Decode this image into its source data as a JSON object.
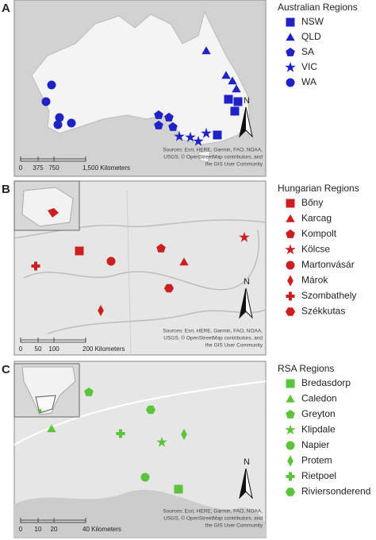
{
  "panels": [
    {
      "letter": "A",
      "legend_title": "Australian Regions",
      "color": "#1f22c4",
      "items": [
        {
          "name": "NSW",
          "marker": "square"
        },
        {
          "name": "QLD",
          "marker": "triangle"
        },
        {
          "name": "SA",
          "marker": "pentagon"
        },
        {
          "name": "VIC",
          "marker": "star"
        },
        {
          "name": "WA",
          "marker": "circle"
        }
      ],
      "scale_labels": [
        "0",
        "375",
        "750",
        "1,500 Kilometers"
      ],
      "north": "N",
      "attribution": [
        "Sources: Esri, HERE, Garmin, FAO, NOAA,",
        "USGS, © OpenStreetMap contributors, and",
        "the GIS User Community"
      ]
    },
    {
      "letter": "B",
      "legend_title": "Hungarian Regions",
      "color": "#cc1f1f",
      "items": [
        {
          "name": "Bőny",
          "marker": "square"
        },
        {
          "name": "Karcag",
          "marker": "triangle"
        },
        {
          "name": "Kompolt",
          "marker": "pentagon"
        },
        {
          "name": "Kölcse",
          "marker": "star"
        },
        {
          "name": "Martonvásár",
          "marker": "circle"
        },
        {
          "name": "Márok",
          "marker": "diamond"
        },
        {
          "name": "Szombathely",
          "marker": "cross"
        },
        {
          "name": "Székkutas",
          "marker": "hexagon"
        }
      ],
      "scale_labels": [
        "0",
        "50",
        "100",
        "200 Kilometers"
      ],
      "north": "N",
      "attribution": [
        "Sources: Esri, HERE, Garmin, FAO, NOAA,",
        "USGS, © OpenStreetMap contributors, and",
        "the GIS User Community"
      ]
    },
    {
      "letter": "C",
      "legend_title": "RSA Regions",
      "color": "#5cc43a",
      "items": [
        {
          "name": "Bredasdorp",
          "marker": "square"
        },
        {
          "name": "Caledon",
          "marker": "triangle"
        },
        {
          "name": "Greyton",
          "marker": "pentagon"
        },
        {
          "name": "Klipdale",
          "marker": "star"
        },
        {
          "name": "Napier",
          "marker": "circle"
        },
        {
          "name": "Protem",
          "marker": "diamond"
        },
        {
          "name": "Rietpoel",
          "marker": "cross"
        },
        {
          "name": "Riviersonderend",
          "marker": "hexagon"
        }
      ],
      "scale_labels": [
        "0",
        "10",
        "20",
        "40 Kilometers"
      ],
      "north": "N",
      "attribution": [
        "Sources: Esri, HERE, Garmin, FAO, NOAA,",
        "USGS, © OpenStreetMap contributors, and",
        "the GIS User Community"
      ]
    }
  ]
}
